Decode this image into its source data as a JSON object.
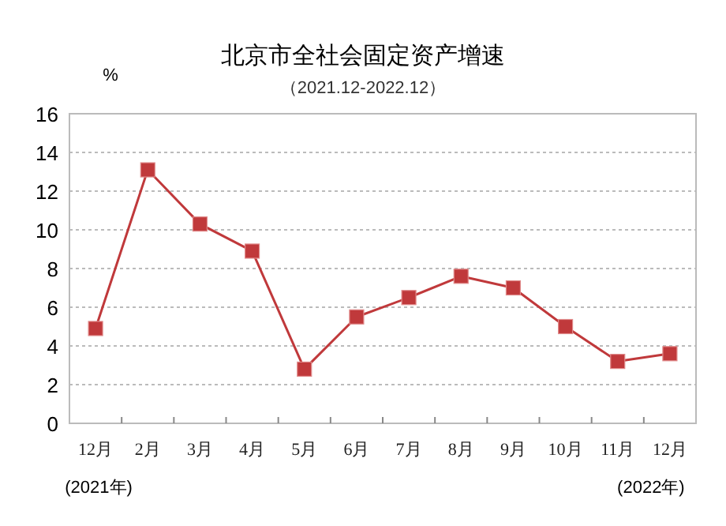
{
  "chart_data": {
    "type": "line",
    "title": "北京市全社会固定资产增速",
    "subtitle": "（2021.12-2022.12）",
    "ylabel": "%",
    "categories": [
      "12月",
      "2月",
      "3月",
      "4月",
      "5月",
      "6月",
      "7月",
      "8月",
      "9月",
      "10月",
      "11月",
      "12月"
    ],
    "series": [
      {
        "color": "#c0393b",
        "values": [
          4.9,
          13.1,
          10.3,
          8.9,
          2.8,
          5.5,
          6.5,
          7.6,
          7.0,
          5.0,
          3.2,
          3.6
        ]
      }
    ],
    "ylim": [
      0,
      16
    ],
    "yticks": [
      0,
      2,
      4,
      6,
      8,
      10,
      12,
      14,
      16
    ],
    "grid": "y",
    "marker": "square",
    "line_style": "solid",
    "annotations": [
      "(2021年)",
      "(2022年)"
    ]
  }
}
